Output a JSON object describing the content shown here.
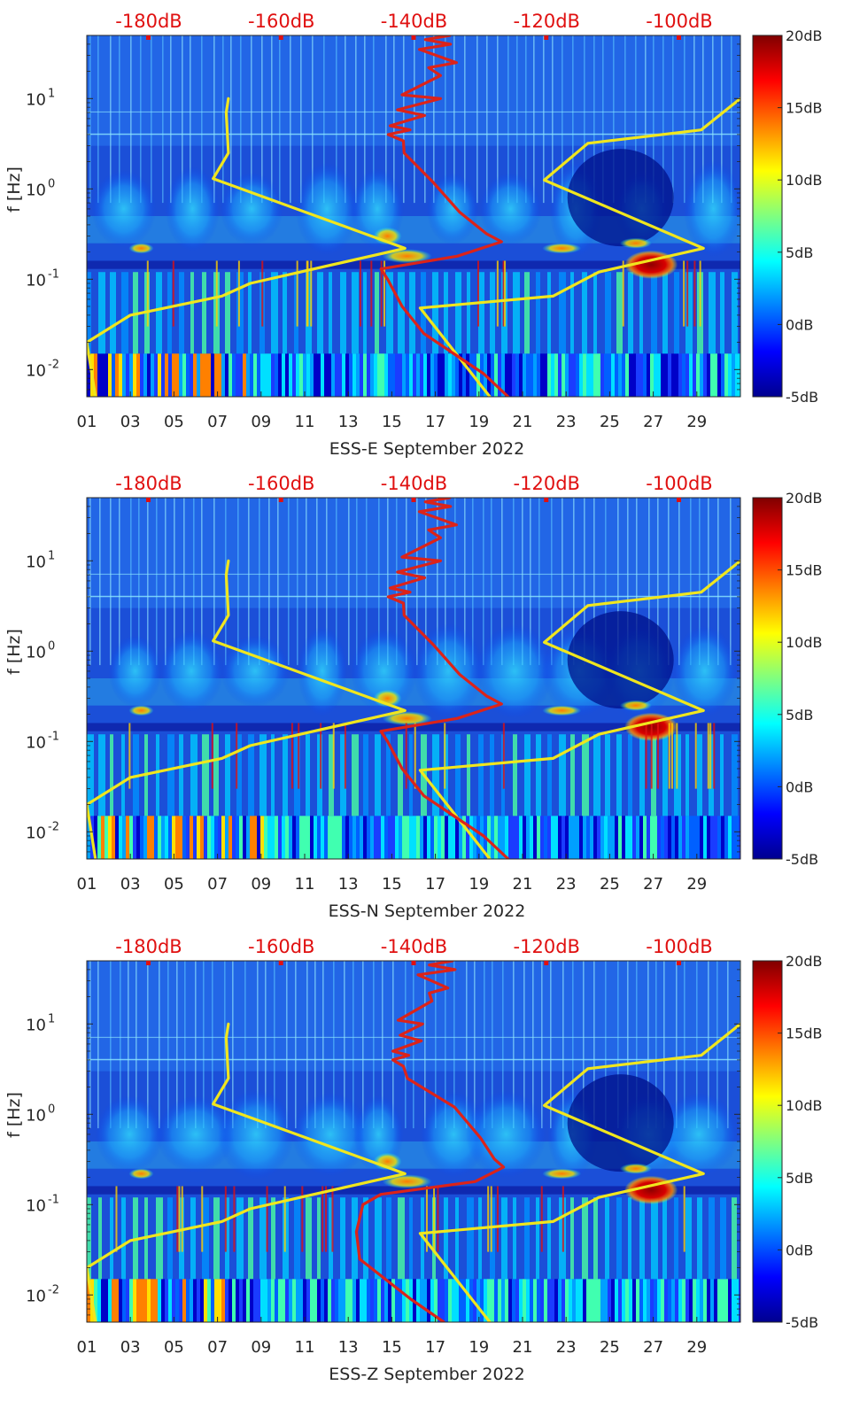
{
  "chart_data": [
    {
      "type": "heatmap",
      "xlabel": "ESS-E September 2022",
      "ylabel": "f [Hz]",
      "yscale": "log",
      "ylim": [
        0.005,
        50
      ],
      "xlim": [
        1,
        31
      ],
      "x_tick_labels": [
        "01",
        "03",
        "05",
        "07",
        "09",
        "11",
        "13",
        "15",
        "17",
        "19",
        "21",
        "23",
        "25",
        "27",
        "29"
      ],
      "y_tick_labels": [
        {
          "base": "10",
          "exp": "-2"
        },
        {
          "base": "10",
          "exp": "-1"
        },
        {
          "base": "10",
          "exp": "0"
        },
        {
          "base": "10",
          "exp": "1"
        }
      ],
      "top_axis_labels": [
        "-180dB",
        "-160dB",
        "-140dB",
        "-120dB",
        "-100dB"
      ],
      "top_axis_values": [
        -180,
        -160,
        -140,
        -120,
        -100
      ],
      "colorbar": {
        "labels": [
          "20dB",
          "15dB",
          "10dB",
          "5dB",
          "0dB",
          "-5dB"
        ],
        "range": [
          -5,
          20
        ],
        "colormap": "jet"
      },
      "overlays": [
        {
          "color": "#f0e61e",
          "x_axis": "bottom",
          "points": [
            [
              7.5,
              10
            ],
            [
              7.4,
              7
            ],
            [
              7.5,
              2.5
            ],
            [
              6.8,
              1.3
            ],
            [
              15.6,
              0.22
            ],
            [
              8.5,
              0.09
            ],
            [
              7.2,
              0.065
            ],
            [
              3.0,
              0.04
            ],
            [
              1.0,
              0.02
            ],
            [
              1.4,
              0.005
            ]
          ]
        },
        {
          "color": "#f0e61e",
          "x_axis": "bottom",
          "points": [
            [
              31,
              10
            ],
            [
              29.2,
              4.5
            ],
            [
              24,
              3.2
            ],
            [
              22.0,
              1.25
            ],
            [
              29.3,
              0.22
            ],
            [
              24.5,
              0.12
            ],
            [
              22.4,
              0.065
            ],
            [
              16.3,
              0.048
            ],
            [
              19.5,
              0.005
            ]
          ]
        },
        {
          "color": "#dc2319",
          "x_axis": "top",
          "points": [
            [
              -134.6,
              50
            ],
            [
              -138.3,
              45
            ],
            [
              -134.5,
              40
            ],
            [
              -139.2,
              35
            ],
            [
              -133.6,
              25
            ],
            [
              -137.8,
              22
            ],
            [
              -136,
              18
            ],
            [
              -141.8,
              11
            ],
            [
              -136,
              10
            ],
            [
              -142.5,
              7.5
            ],
            [
              -138.4,
              6.5
            ],
            [
              -143.6,
              5.0
            ],
            [
              -140.6,
              4.5
            ],
            [
              -143.9,
              4.0
            ],
            [
              -141.6,
              3.4
            ],
            [
              -141.5,
              2.5
            ],
            [
              -137.2,
              1.2
            ],
            [
              -133.1,
              0.55
            ],
            [
              -129.1,
              0.32
            ],
            [
              -126.8,
              0.26
            ],
            [
              -133.5,
              0.18
            ],
            [
              -145,
              0.13
            ],
            [
              -144,
              0.1
            ],
            [
              -141.8,
              0.05
            ],
            [
              -138.5,
              0.025
            ],
            [
              -129.5,
              0.009
            ],
            [
              -125.8,
              0.005
            ]
          ]
        }
      ]
    },
    {
      "type": "heatmap",
      "xlabel": "ESS-N September 2022",
      "ylabel": "f [Hz]",
      "yscale": "log",
      "ylim": [
        0.005,
        50
      ],
      "xlim": [
        1,
        31
      ],
      "x_tick_labels": [
        "01",
        "03",
        "05",
        "07",
        "09",
        "11",
        "13",
        "15",
        "17",
        "19",
        "21",
        "23",
        "25",
        "27",
        "29"
      ],
      "y_tick_labels": [
        {
          "base": "10",
          "exp": "-2"
        },
        {
          "base": "10",
          "exp": "-1"
        },
        {
          "base": "10",
          "exp": "0"
        },
        {
          "base": "10",
          "exp": "1"
        }
      ],
      "top_axis_labels": [
        "-180dB",
        "-160dB",
        "-140dB",
        "-120dB",
        "-100dB"
      ],
      "top_axis_values": [
        -180,
        -160,
        -140,
        -120,
        -100
      ],
      "colorbar": {
        "labels": [
          "20dB",
          "15dB",
          "10dB",
          "5dB",
          "0dB",
          "-5dB"
        ],
        "range": [
          -5,
          20
        ],
        "colormap": "jet"
      },
      "overlays": [
        {
          "color": "#f0e61e",
          "x_axis": "bottom",
          "points": [
            [
              7.5,
              10
            ],
            [
              7.4,
              7
            ],
            [
              7.5,
              2.5
            ],
            [
              6.8,
              1.3
            ],
            [
              15.6,
              0.22
            ],
            [
              8.5,
              0.09
            ],
            [
              7.2,
              0.065
            ],
            [
              3.0,
              0.04
            ],
            [
              1.0,
              0.02
            ],
            [
              1.4,
              0.005
            ]
          ]
        },
        {
          "color": "#f0e61e",
          "x_axis": "bottom",
          "points": [
            [
              31,
              10
            ],
            [
              29.2,
              4.5
            ],
            [
              24,
              3.2
            ],
            [
              22.0,
              1.25
            ],
            [
              29.3,
              0.22
            ],
            [
              24.5,
              0.12
            ],
            [
              22.4,
              0.065
            ],
            [
              16.3,
              0.048
            ],
            [
              19.5,
              0.005
            ]
          ]
        },
        {
          "color": "#dc2319",
          "x_axis": "top",
          "points": [
            [
              -134.6,
              50
            ],
            [
              -138.3,
              45
            ],
            [
              -134.5,
              40
            ],
            [
              -139.2,
              35
            ],
            [
              -133.6,
              25
            ],
            [
              -137.8,
              22
            ],
            [
              -136,
              18
            ],
            [
              -141.8,
              11
            ],
            [
              -136,
              10
            ],
            [
              -142.5,
              7.5
            ],
            [
              -138.4,
              6.5
            ],
            [
              -143.6,
              5.0
            ],
            [
              -140.6,
              4.5
            ],
            [
              -143.9,
              4.0
            ],
            [
              -141.6,
              3.4
            ],
            [
              -141.5,
              2.5
            ],
            [
              -137.2,
              1.2
            ],
            [
              -133.1,
              0.55
            ],
            [
              -129.1,
              0.32
            ],
            [
              -126.8,
              0.26
            ],
            [
              -133.5,
              0.18
            ],
            [
              -145,
              0.13
            ],
            [
              -144,
              0.1
            ],
            [
              -141.8,
              0.05
            ],
            [
              -138.5,
              0.025
            ],
            [
              -129.5,
              0.009
            ],
            [
              -125.8,
              0.005
            ]
          ]
        }
      ]
    },
    {
      "type": "heatmap",
      "xlabel": "ESS-Z September 2022",
      "ylabel": "f [Hz]",
      "yscale": "log",
      "ylim": [
        0.005,
        50
      ],
      "xlim": [
        1,
        31
      ],
      "x_tick_labels": [
        "01",
        "03",
        "05",
        "07",
        "09",
        "11",
        "13",
        "15",
        "17",
        "19",
        "21",
        "23",
        "25",
        "27",
        "29"
      ],
      "y_tick_labels": [
        {
          "base": "10",
          "exp": "-2"
        },
        {
          "base": "10",
          "exp": "-1"
        },
        {
          "base": "10",
          "exp": "0"
        },
        {
          "base": "10",
          "exp": "1"
        }
      ],
      "top_axis_labels": [
        "-180dB",
        "-160dB",
        "-140dB",
        "-120dB",
        "-100dB"
      ],
      "top_axis_values": [
        -180,
        -160,
        -140,
        -120,
        -100
      ],
      "colorbar": {
        "labels": [
          "20dB",
          "15dB",
          "10dB",
          "5dB",
          "0dB",
          "-5dB"
        ],
        "range": [
          -5,
          20
        ],
        "colormap": "jet"
      },
      "overlays": [
        {
          "color": "#f0e61e",
          "x_axis": "bottom",
          "points": [
            [
              7.5,
              10
            ],
            [
              7.4,
              7
            ],
            [
              7.5,
              2.5
            ],
            [
              6.8,
              1.3
            ],
            [
              15.6,
              0.22
            ],
            [
              8.5,
              0.09
            ],
            [
              7.2,
              0.065
            ],
            [
              3.0,
              0.04
            ],
            [
              1.0,
              0.02
            ],
            [
              1.4,
              0.005
            ]
          ]
        },
        {
          "color": "#f0e61e",
          "x_axis": "bottom",
          "points": [
            [
              31,
              10
            ],
            [
              29.2,
              4.5
            ],
            [
              24,
              3.2
            ],
            [
              22.0,
              1.25
            ],
            [
              29.3,
              0.22
            ],
            [
              24.5,
              0.12
            ],
            [
              22.4,
              0.065
            ],
            [
              16.3,
              0.048
            ],
            [
              19.5,
              0.005
            ]
          ]
        },
        {
          "color": "#dc2319",
          "x_axis": "top",
          "points": [
            [
              -134.2,
              50
            ],
            [
              -137.7,
              45
            ],
            [
              -133.8,
              40
            ],
            [
              -139.4,
              35
            ],
            [
              -134.9,
              25
            ],
            [
              -137.7,
              22
            ],
            [
              -137.3,
              18
            ],
            [
              -142.4,
              11
            ],
            [
              -138.7,
              10
            ],
            [
              -142.1,
              7.5
            ],
            [
              -138.9,
              6.5
            ],
            [
              -143.2,
              5.0
            ],
            [
              -140.8,
              4.5
            ],
            [
              -143.2,
              4.0
            ],
            [
              -141.6,
              3.4
            ],
            [
              -141,
              2.5
            ],
            [
              -133.9,
              1.2
            ],
            [
              -130,
              0.55
            ],
            [
              -127.9,
              0.32
            ],
            [
              -126.5,
              0.26
            ],
            [
              -130.8,
              0.18
            ],
            [
              -145,
              0.13
            ],
            [
              -147.7,
              0.1
            ],
            [
              -148.7,
              0.05
            ],
            [
              -148.2,
              0.025
            ],
            [
              -140.5,
              0.009
            ],
            [
              -135.5,
              0.005
            ]
          ]
        }
      ]
    }
  ]
}
